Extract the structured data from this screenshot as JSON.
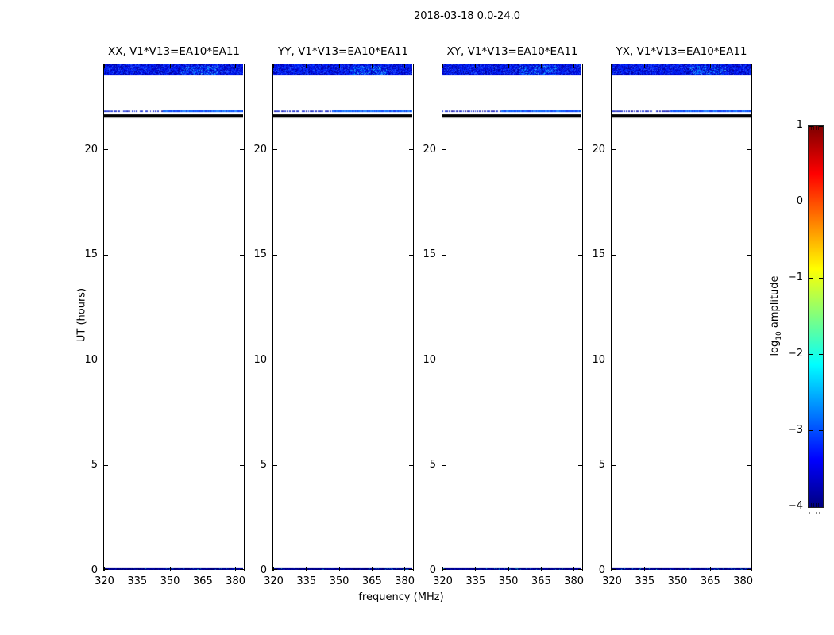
{
  "chart_data": {
    "type": "heatmap",
    "title": "2018-03-18 0.0-24.0",
    "xlabel": "frequency (MHz)",
    "ylabel": "UT (hours)",
    "xlim_mhz": [
      320,
      383.6
    ],
    "ylim_hours": [
      0,
      24.06
    ],
    "xticks": [
      320,
      335,
      350,
      365,
      380
    ],
    "yticks": [
      0,
      5,
      10,
      15,
      20
    ],
    "grid": false,
    "panels": [
      {
        "id": "xx",
        "label": "XX, V1*V13=EA10*EA11"
      },
      {
        "id": "yy",
        "label": "YY, V1*V13=EA10*EA11"
      },
      {
        "id": "xy",
        "label": "XY, V1*V13=EA10*EA11"
      },
      {
        "id": "yx",
        "label": "YX, V1*V13=EA10*EA11"
      }
    ],
    "features": [
      {
        "name": "top-noise-band",
        "y_hours": [
          23.55,
          24.06
        ],
        "style": "noise-band",
        "base_color": "#0000c8"
      },
      {
        "name": "faint-blue-line",
        "y_hours": [
          21.79,
          21.87
        ],
        "style": "speckle-line",
        "base_color": "#0028e0"
      },
      {
        "name": "black-band",
        "y_hours": [
          21.52,
          21.68
        ],
        "style": "solid",
        "base_color": "#000000"
      },
      {
        "name": "bottom-noise-row",
        "y_hours": [
          0.0,
          0.1
        ],
        "style": "noise-row",
        "base_color": "#000085"
      }
    ],
    "colorbar": {
      "label": "log10 amplitude",
      "label_parts": {
        "prefix": "log",
        "sub": "10",
        "suffix": " amplitude"
      },
      "tick_labels": [
        "1",
        "0",
        "−1",
        "−2",
        "−3",
        "−4"
      ],
      "tick_values": [
        1,
        0,
        -1,
        -2,
        -3,
        -4
      ],
      "vmin": -4,
      "vmax": 1,
      "cmap": "jet",
      "cmap_stops_top_to_bottom": [
        {
          "pos": 0.0,
          "color": "#7f0000"
        },
        {
          "pos": 0.125,
          "color": "#ff0000"
        },
        {
          "pos": 0.375,
          "color": "#ffff00"
        },
        {
          "pos": 0.625,
          "color": "#00ffff"
        },
        {
          "pos": 0.875,
          "color": "#0000ff"
        },
        {
          "pos": 1.0,
          "color": "#000080"
        }
      ]
    }
  }
}
